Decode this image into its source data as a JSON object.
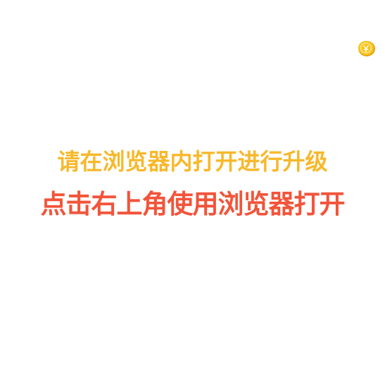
{
  "upgrade_prompt": {
    "instruction_text": "请在浏览器内打开进行升级",
    "action_text": "点击右上角使用浏览器打开"
  },
  "corner": {
    "icon": "gold-coin-icon"
  },
  "colors": {
    "instruction": "#f7b82b",
    "action": "#f2543a",
    "coin_fill": "#f9c51d",
    "coin_rim": "#e6a410"
  }
}
